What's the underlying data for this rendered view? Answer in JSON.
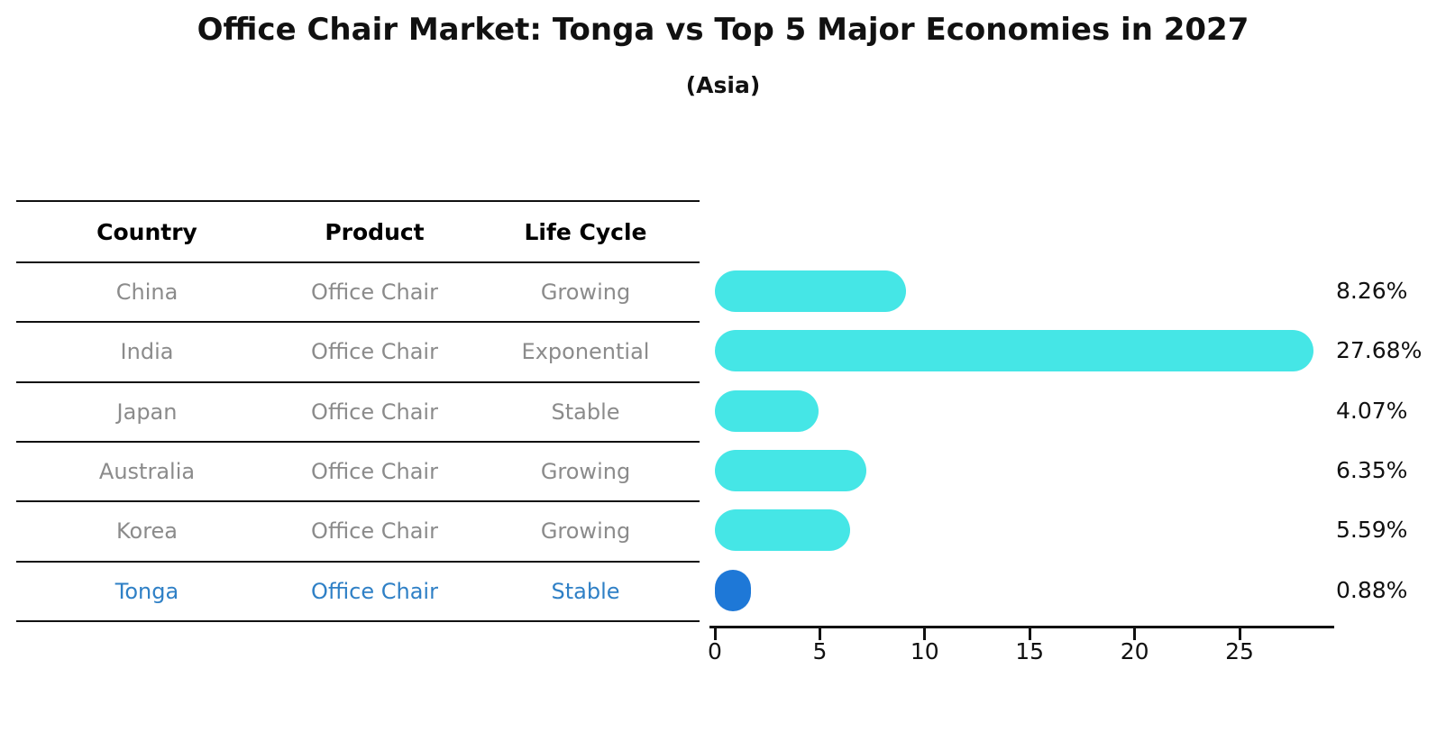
{
  "title": "Office Chair Market: Tonga vs Top 5 Major Economies in 2027",
  "subtitle": "(Asia)",
  "colors": {
    "bar_default": "#45E6E6",
    "bar_highlight": "#1E78D7",
    "highlight_text": "#2F80C6",
    "row_text": "#8B8B8B",
    "header_text": "#000000",
    "axis_and_labels": "#111111"
  },
  "table": {
    "headers": [
      "Country",
      "Product",
      "Life Cycle"
    ],
    "rows": [
      {
        "country": "China",
        "product": "Office Chair",
        "life_cycle": "Growing",
        "highlight": false
      },
      {
        "country": "India",
        "product": "Office Chair",
        "life_cycle": "Exponential",
        "highlight": false
      },
      {
        "country": "Japan",
        "product": "Office Chair",
        "life_cycle": "Stable",
        "highlight": false
      },
      {
        "country": "Australia",
        "product": "Office Chair",
        "life_cycle": "Growing",
        "highlight": false
      },
      {
        "country": "Korea",
        "product": "Office Chair",
        "life_cycle": "Growing",
        "highlight": false
      },
      {
        "country": "Tonga",
        "product": "Office Chair",
        "life_cycle": "Stable",
        "highlight": true
      }
    ]
  },
  "chart_data": {
    "type": "bar",
    "orientation": "horizontal",
    "title": "Office Chair Market: Tonga vs Top 5 Major Economies in 2027",
    "subtitle": "(Asia)",
    "categories": [
      "China",
      "India",
      "Japan",
      "Australia",
      "Korea",
      "Tonga"
    ],
    "values": [
      8.26,
      27.68,
      4.07,
      6.35,
      5.59,
      0.88
    ],
    "value_labels": [
      "8.26%",
      "27.68%",
      "4.07%",
      "6.35%",
      "5.59%",
      "0.88%"
    ],
    "series_meta": {
      "product": "Office Chair",
      "life_cycles": [
        "Growing",
        "Exponential",
        "Stable",
        "Growing",
        "Growing",
        "Stable"
      ]
    },
    "highlight_index": 5,
    "highlight_category": "Tonga",
    "bar_color": "#45E6E6",
    "highlight_color": "#1E78D7",
    "xlabel": "",
    "ylabel": "",
    "xticks": [
      0,
      5,
      10,
      15,
      20,
      25
    ],
    "xlim": [
      0,
      29.5
    ],
    "grid": false,
    "legend": false,
    "value_label_format": "percent"
  }
}
